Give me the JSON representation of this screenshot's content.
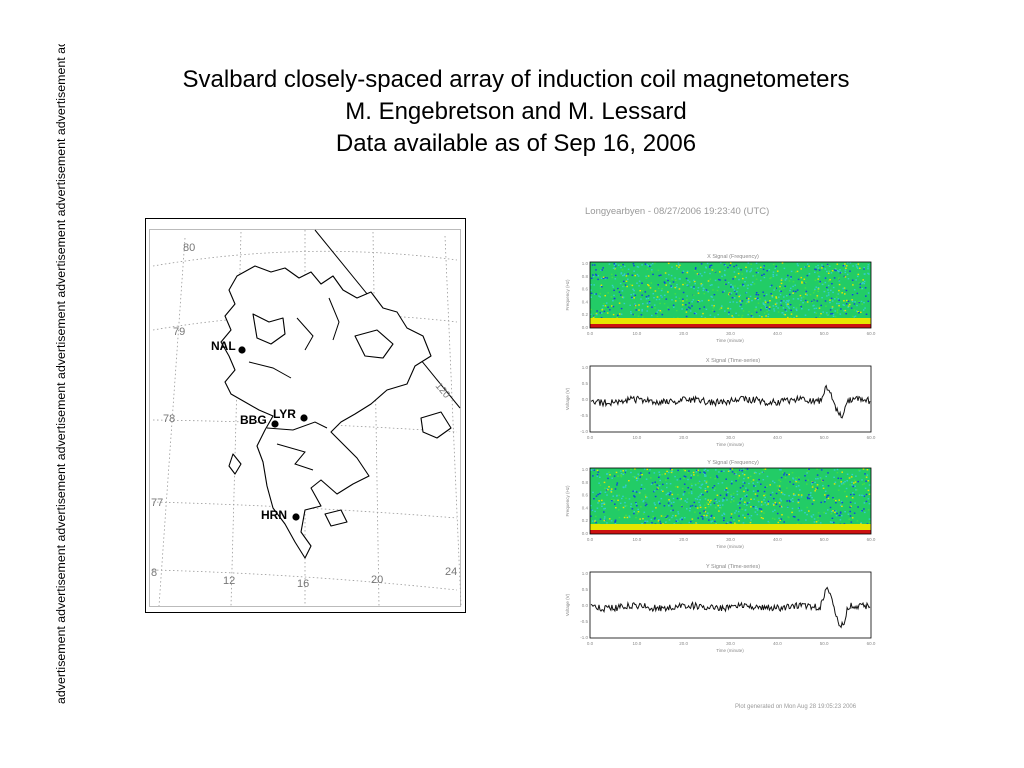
{
  "side_text": "advertisement advertisement advertisement advertisement advertisement advertisement advertisement advertisement advertisement",
  "title": {
    "line1": "Svalbard closely-spaced array of induction coil magnetometers",
    "line2": "M. Engebretson and M. Lessard",
    "line3": "Data available as of Sep 16, 2006"
  },
  "map": {
    "lat_labels": [
      "80",
      "79",
      "78",
      "77"
    ],
    "lon_labels": [
      "8",
      "12",
      "16",
      "20",
      "24"
    ],
    "diag_label": "120",
    "stations": [
      "NAL",
      "BBG",
      "LYR",
      "HRN"
    ],
    "station_color": "#000000",
    "land_color": "#ffffff",
    "grid_color": "#999999"
  },
  "plot": {
    "header": "Longyearbyen  - 08/27/2006 19:23:40 (UTC)",
    "footer": "Plot generated on Mon Aug 28 19:05:23 2006",
    "panels": [
      {
        "title": "X Signal (Frequency)",
        "ylabel": "Frequency (Hz)",
        "xlabel": "Time (minute)"
      },
      {
        "title": "X Signal (Time-series)",
        "ylabel": "Voltage (V)",
        "xlabel": "Time (minute)"
      },
      {
        "title": "Y Signal (Frequency)",
        "ylabel": "Frequency (Hz)",
        "xlabel": "Time (minute)"
      },
      {
        "title": "Y Signal (Time-series)",
        "ylabel": "Voltage (V)",
        "xlabel": "Time (minute)"
      }
    ],
    "freq_yticks": [
      "1.0",
      "0.8",
      "0.6",
      "0.4",
      "0.2",
      "0.0"
    ],
    "volt_yticks": [
      "1.0",
      "0.5",
      "0.0",
      "-0.5",
      "-1.0"
    ],
    "xticks": [
      "0.0",
      "10.0",
      "20.0",
      "30.0",
      "40.0",
      "50.0",
      "60.0"
    ],
    "spectrogram_colors": {
      "background": "#22cc66",
      "high": "#cc1111",
      "mid": "#e6e600",
      "low": "#1144dd",
      "cyan": "#33cccc"
    }
  }
}
